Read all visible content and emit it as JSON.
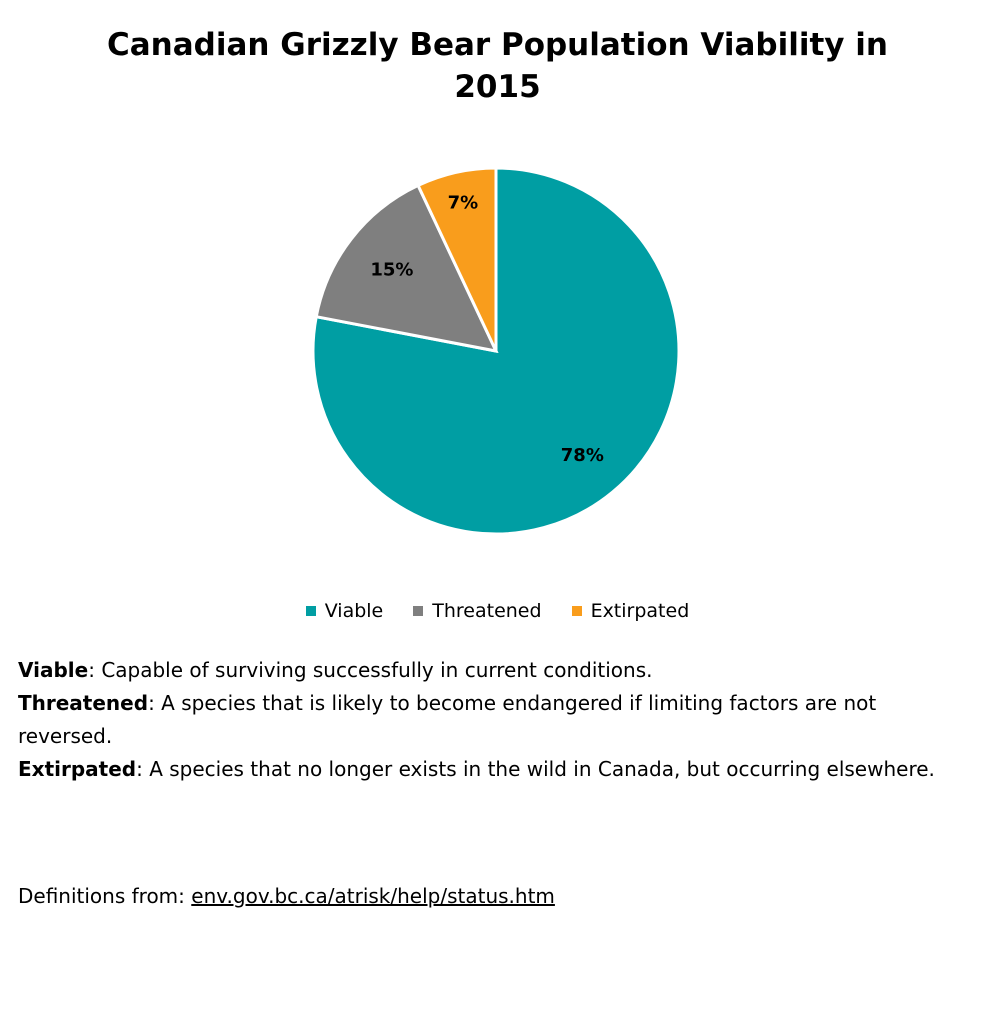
{
  "chart_data": {
    "type": "pie",
    "title_line1": "Canadian Grizzly Bear Population Viability in",
    "title_line2": "2015",
    "categories": [
      "Viable",
      "Threatened",
      "Extirpated"
    ],
    "values": [
      78,
      15,
      7
    ],
    "data_labels": [
      "78%",
      "15%",
      "7%"
    ],
    "colors": [
      "#009ea3",
      "#7f7f7f",
      "#f99d1c"
    ],
    "legend": "bottom"
  },
  "definitions": [
    {
      "term": "Viable",
      "text": ": Capable of surviving successfully in current conditions."
    },
    {
      "term": "Threatened",
      "text": ": A species that is likely to become endangered if limiting factors are not reversed."
    },
    {
      "term": "Extirpated",
      "text": ": A species that no longer exists in the wild in Canada, but occurring elsewhere."
    }
  ],
  "source": {
    "prefix": "Definitions from: ",
    "link": "env.gov.bc.ca/atrisk/help/status.htm"
  }
}
